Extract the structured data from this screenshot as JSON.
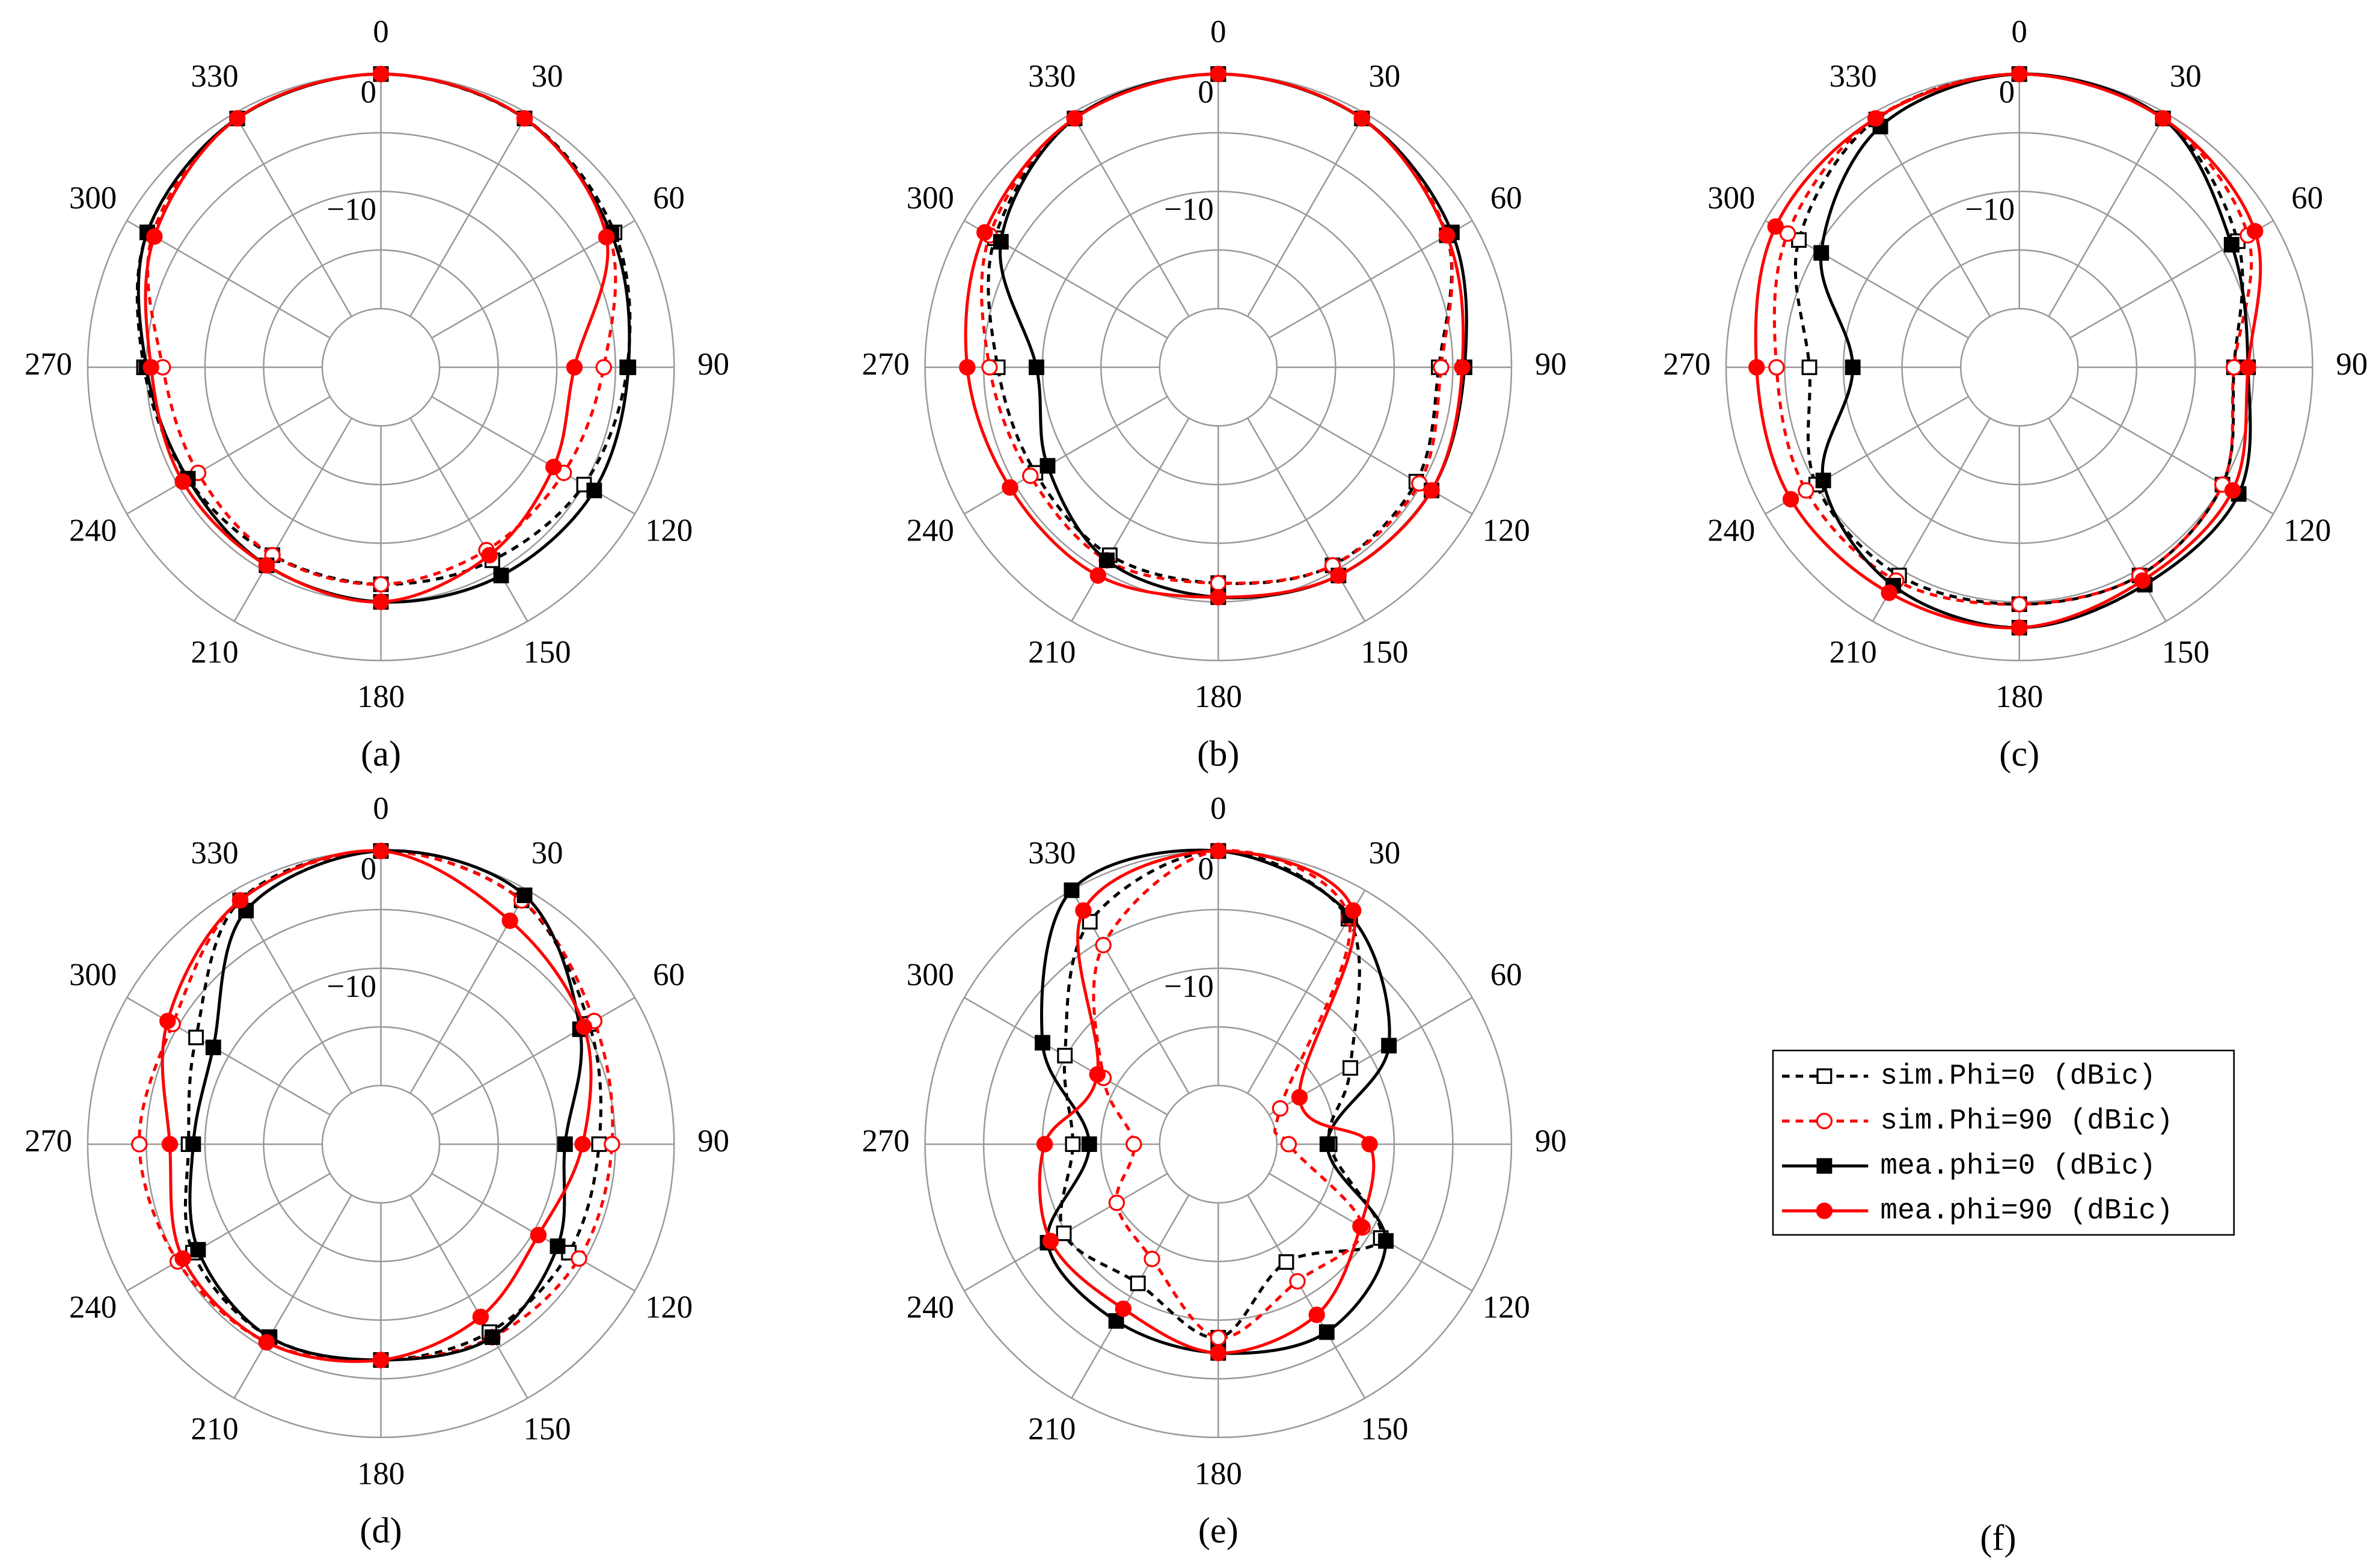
{
  "chart_data": [
    {
      "type": "polar",
      "label": "(a)",
      "theta": [
        0,
        30,
        60,
        90,
        120,
        150,
        180,
        210,
        240,
        270,
        300,
        330
      ],
      "thetaticks": [
        0,
        30,
        60,
        90,
        120,
        150,
        180,
        210,
        240,
        270,
        300,
        330
      ],
      "rlim": [
        -25,
        0
      ],
      "rticks": [
        0,
        {
          "value": -10,
          "label": "−10"
        }
      ],
      "rgrid": [
        -20,
        -15,
        -10,
        -5,
        0
      ],
      "series": [
        {
          "values": [
            0,
            -0.5,
            -2,
            -4,
            -5,
            -6,
            -6.5,
            -6.5,
            -6,
            -4.8,
            -2,
            -0.5
          ]
        },
        {
          "values": [
            0,
            -0.5,
            -2.5,
            -6,
            -7,
            -7,
            -6.5,
            -6.5,
            -7,
            -6.4,
            -2.5,
            -0.5
          ]
        },
        {
          "values": [
            0,
            -0.5,
            -2.3,
            -3.9,
            -4,
            -4.5,
            -5,
            -5.5,
            -6,
            -5,
            -2,
            -0.5
          ]
        },
        {
          "values": [
            0,
            -0.5,
            -2.8,
            -8.5,
            -8,
            -6.5,
            -5,
            -5.5,
            -5.5,
            -5.4,
            -2.7,
            -0.5
          ]
        }
      ]
    },
    {
      "type": "polar",
      "label": "(b)",
      "theta": [
        0,
        30,
        60,
        90,
        120,
        150,
        180,
        210,
        240,
        270,
        300,
        330
      ],
      "thetaticks": [
        0,
        30,
        60,
        90,
        120,
        150,
        180,
        210,
        240,
        270,
        300,
        330
      ],
      "rlim": [
        -25,
        0
      ],
      "rticks": [
        0,
        {
          "value": -10,
          "label": "−10"
        }
      ],
      "rgrid": [
        -20,
        -15,
        -10,
        -5,
        0
      ],
      "series": [
        {
          "values": [
            0,
            -0.5,
            -2.5,
            -6.2,
            -5.5,
            -5.5,
            -6.6,
            -6.5,
            -7,
            -6.2,
            -3,
            -0.5
          ]
        },
        {
          "values": [
            0,
            -0.5,
            -2.5,
            -6,
            -5.2,
            -5.5,
            -6.6,
            -6,
            -6.5,
            -5.5,
            -2.5,
            -0.5
          ]
        },
        {
          "values": [
            0,
            -0.5,
            -2,
            -4,
            -4,
            -4.5,
            -5.4,
            -6,
            -8.2,
            -9.5,
            -3.6,
            -0.5
          ]
        },
        {
          "values": [
            0,
            -0.5,
            -2.5,
            -4.2,
            -4,
            -4.5,
            -5.4,
            -4.5,
            -4.5,
            -3.6,
            -2,
            -0.5
          ]
        }
      ]
    },
    {
      "type": "polar",
      "label": "(c)",
      "theta": [
        0,
        30,
        60,
        90,
        120,
        150,
        180,
        210,
        240,
        270,
        300,
        330
      ],
      "thetaticks": [
        0,
        30,
        60,
        90,
        120,
        150,
        180,
        210,
        240,
        270,
        300,
        330
      ],
      "rlim": [
        -25,
        0
      ],
      "rticks": [
        0,
        {
          "value": -10,
          "label": "−10"
        }
      ],
      "rgrid": [
        -20,
        -15,
        -10,
        -5,
        0
      ],
      "series": [
        {
          "values": [
            0,
            -0.5,
            -3.5,
            -6.7,
            -5,
            -4.5,
            -4.8,
            -4.5,
            -5,
            -7.1,
            -3.3,
            -0.6
          ]
        },
        {
          "values": [
            0,
            -0.5,
            -2.5,
            -6.7,
            -5,
            -4.5,
            -4.8,
            -4,
            -4,
            -4.3,
            -2.2,
            -0.5
          ]
        },
        {
          "values": [
            0,
            -0.5,
            -4.1,
            -5.5,
            -3.4,
            -3.6,
            -2.8,
            -3.5,
            -5.7,
            -10.8,
            -5.5,
            -1.3
          ]
        },
        {
          "values": [
            0,
            -0.5,
            -1.8,
            -5.5,
            -4,
            -4,
            -2.8,
            -2.8,
            -2.5,
            -2.6,
            -1,
            -0.5
          ]
        }
      ]
    },
    {
      "type": "polar",
      "label": "(d)",
      "theta": [
        0,
        30,
        60,
        90,
        120,
        150,
        180,
        210,
        240,
        270,
        300,
        330
      ],
      "thetaticks": [
        0,
        30,
        60,
        90,
        120,
        150,
        180,
        210,
        240,
        270,
        300,
        330
      ],
      "rlim": [
        -25,
        0
      ],
      "rticks": [
        0,
        {
          "value": -10,
          "label": "−10"
        }
      ],
      "rgrid": [
        -20,
        -15,
        -10,
        -5,
        0
      ],
      "series": [
        {
          "values": [
            0,
            -1,
            -4.5,
            -6.4,
            -6.5,
            -6.5,
            -6.6,
            -6,
            -6.5,
            -8.6,
            -6.8,
            -1
          ]
        },
        {
          "values": [
            0,
            -1,
            -4,
            -5.3,
            -5.5,
            -6,
            -6.6,
            -5.5,
            -5,
            -4.4,
            -4.5,
            -1
          ]
        },
        {
          "values": [
            0,
            -0.5,
            -5.4,
            -9.3,
            -7.6,
            -6,
            -6.6,
            -6,
            -7,
            -9,
            -8.5,
            -2
          ]
        },
        {
          "values": [
            0,
            -3,
            -5,
            -7.8,
            -9.5,
            -8,
            -6.6,
            -5.5,
            -5.5,
            -7,
            -4,
            -1
          ]
        }
      ]
    },
    {
      "type": "polar",
      "label": "(e)",
      "theta": [
        0,
        30,
        60,
        90,
        120,
        150,
        180,
        210,
        240,
        270,
        300,
        330
      ],
      "thetaticks": [
        0,
        30,
        60,
        90,
        120,
        150,
        180,
        210,
        240,
        270,
        300,
        330
      ],
      "rlim": [
        -25,
        0
      ],
      "rticks": [
        0,
        {
          "value": -10,
          "label": "−10"
        }
      ],
      "rgrid": [
        -20,
        -15,
        -10,
        -5,
        0
      ],
      "series": [
        {
          "values": [
            0,
            -2.8,
            -12,
            -15.5,
            -9,
            -13.4,
            -8.5,
            -11.3,
            -9.8,
            -12.6,
            -9.9,
            -3.1
          ]
        },
        {
          "values": [
            0,
            -2.7,
            -18.9,
            -19,
            -10.8,
            -11.5,
            -8.5,
            -13.7,
            -15,
            -17.8,
            -13.7,
            -5.4
          ]
        },
        {
          "values": [
            0,
            -2.5,
            -8.2,
            -15.7,
            -8.5,
            -6.5,
            -7.2,
            -7.6,
            -8.2,
            -14,
            -7.7,
            0
          ]
        },
        {
          "values": [
            0,
            -2,
            -17,
            -12.1,
            -11,
            -8.2,
            -7.2,
            -8.8,
            -8.5,
            -10.2,
            -13.1,
            -2
          ]
        }
      ]
    }
  ],
  "legend": {
    "label": "(f)",
    "items": [
      {
        "name": "sim.Phi=0 (dBic)",
        "color": "#000000",
        "dash": true,
        "marker": "square",
        "filled": false
      },
      {
        "name": "sim.Phi=90 (dBic)",
        "color": "#ff0000",
        "dash": true,
        "marker": "circle",
        "filled": false
      },
      {
        "name": "mea.phi=0 (dBic)",
        "color": "#000000",
        "dash": false,
        "marker": "square",
        "filled": true
      },
      {
        "name": "mea.phi=90 (dBic)",
        "color": "#ff0000",
        "dash": false,
        "marker": "circle",
        "filled": true
      }
    ]
  }
}
